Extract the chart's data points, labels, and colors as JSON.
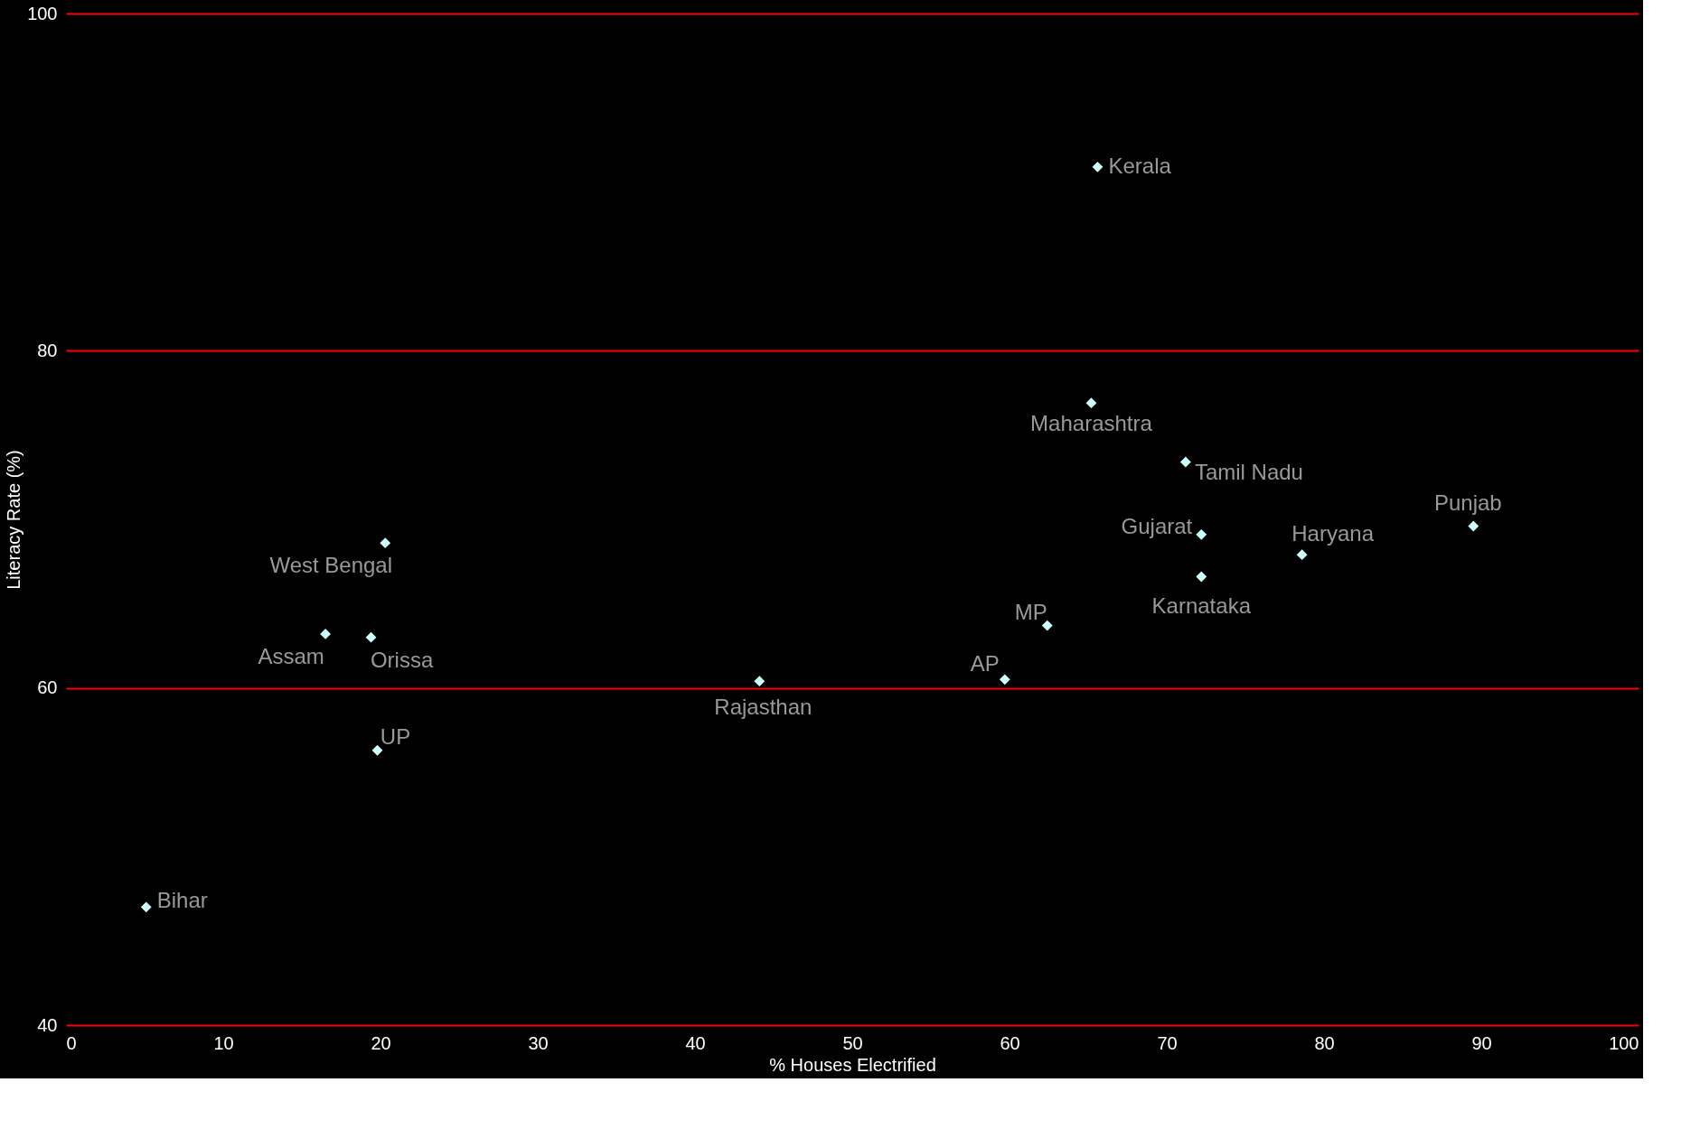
{
  "chart_data": {
    "type": "scatter",
    "xlabel": "% Houses Electrified",
    "ylabel": "Literacy Rate (%)",
    "x": [
      65.6,
      65.2,
      71.2,
      72.2,
      72.2,
      78.6,
      89.5,
      62.4,
      59.7,
      44.1,
      20.3,
      16.5,
      19.4,
      19.8,
      5.1
    ],
    "series": [
      {
        "color": "#ccffff",
        "values": [
          90.9,
          76.9,
          73.4,
          69.1,
          66.6,
          67.9,
          69.6,
          63.7,
          60.5,
          60.4,
          68.6,
          63.2,
          63.0,
          56.3,
          47.0
        ]
      }
    ],
    "xlim": [
      0,
      100
    ],
    "xticks": [
      0,
      10,
      20,
      30,
      40,
      50,
      60,
      70,
      80,
      90,
      100
    ],
    "ylim": [
      40,
      100
    ],
    "yticks": [
      40,
      60,
      80,
      100
    ],
    "grid": "y",
    "marker": "diamond",
    "annotations": [
      {
        "text": "Kerala",
        "x": 65.6,
        "y": 90.9
      },
      {
        "text": "Maharashtra",
        "x": 65.2,
        "y": 76.9
      },
      {
        "text": "Tamil Nadu",
        "x": 71.2,
        "y": 73.4
      },
      {
        "text": "Gujarat",
        "x": 72.2,
        "y": 69.1
      },
      {
        "text": "Karnataka",
        "x": 72.2,
        "y": 66.6
      },
      {
        "text": "Haryana",
        "x": 78.6,
        "y": 67.9
      },
      {
        "text": "Punjab",
        "x": 89.5,
        "y": 69.6
      },
      {
        "text": "MP",
        "x": 62.4,
        "y": 63.7
      },
      {
        "text": "AP",
        "x": 59.7,
        "y": 60.5
      },
      {
        "text": "Rajasthan",
        "x": 44.1,
        "y": 60.4
      },
      {
        "text": "West Bengal",
        "x": 20.3,
        "y": 68.6
      },
      {
        "text": "Assam",
        "x": 16.5,
        "y": 63.2
      },
      {
        "text": "Orissa",
        "x": 19.4,
        "y": 63.0
      },
      {
        "text": "UP",
        "x": 19.8,
        "y": 56.3
      },
      {
        "text": "Bihar",
        "x": 5.1,
        "y": 47.0
      }
    ]
  }
}
